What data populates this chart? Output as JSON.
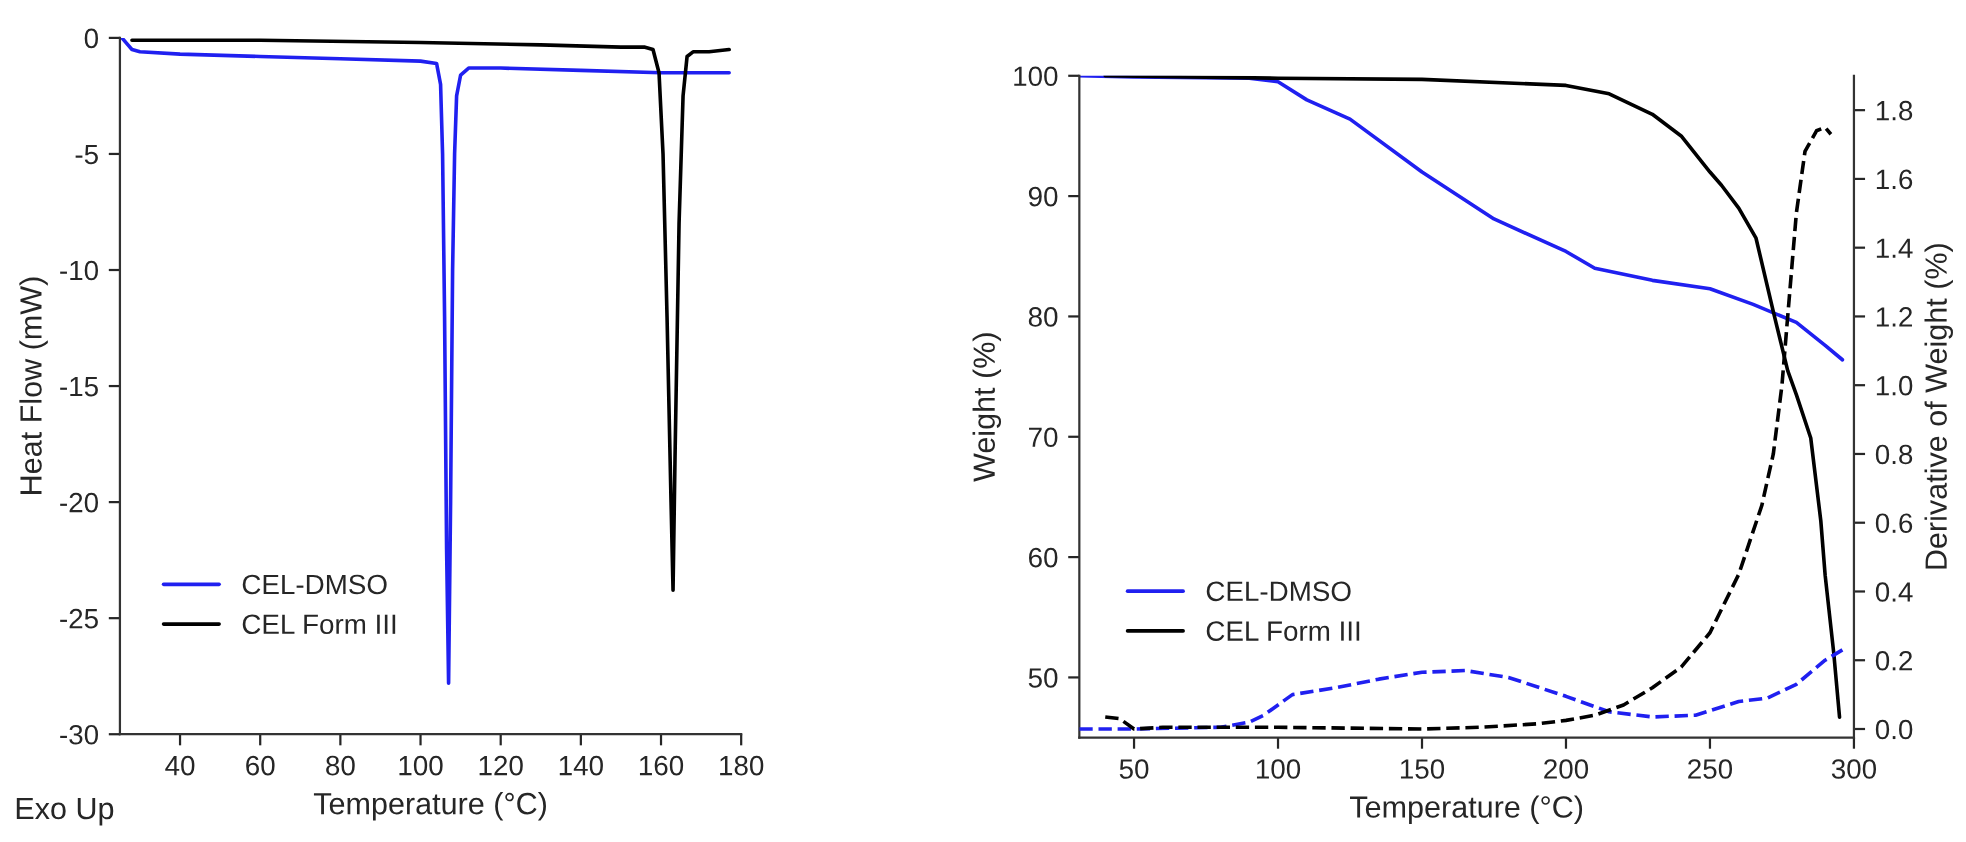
{
  "chart_data": [
    {
      "type": "line",
      "xlabel": "Temperature (°C)",
      "ylabel": "Heat Flow (mW)",
      "annotations": [
        "Exo Up"
      ],
      "xlim": [
        25,
        180
      ],
      "xticks": [
        40,
        60,
        80,
        100,
        120,
        140,
        160,
        180
      ],
      "ylim": [
        -30,
        0
      ],
      "yticks": [
        -30,
        -25,
        -20,
        -15,
        -10,
        -5,
        0
      ],
      "legend": "bottom left",
      "series": [
        {
          "name": "CEL-DMSO",
          "color": "#2020f0",
          "x": [
            25.5,
            27,
            28,
            30,
            40,
            60,
            80,
            100,
            104,
            105,
            105.5,
            106,
            106.5,
            107,
            107.5,
            108,
            108.5,
            109,
            110,
            112,
            120,
            140,
            160,
            177
          ],
          "values": [
            0,
            -0.3,
            -0.5,
            -0.6,
            -0.7,
            -0.8,
            -0.9,
            -1.0,
            -1.1,
            -2,
            -5,
            -12,
            -22,
            -27.8,
            -20,
            -10,
            -5,
            -2.5,
            -1.6,
            -1.3,
            -1.3,
            -1.4,
            -1.5,
            -1.5
          ]
        },
        {
          "name": "CEL Form III",
          "color": "#000000",
          "x": [
            28,
            60,
            100,
            130,
            150,
            156,
            158,
            159.5,
            160.5,
            161.5,
            162.5,
            163,
            163.5,
            164.5,
            165.5,
            166.5,
            168,
            172,
            177
          ],
          "values": [
            -0.1,
            -0.1,
            -0.2,
            -0.3,
            -0.4,
            -0.4,
            -0.5,
            -1.5,
            -5,
            -12,
            -20,
            -23.8,
            -18,
            -8,
            -2.5,
            -0.8,
            -0.6,
            -0.6,
            -0.5
          ]
        }
      ]
    },
    {
      "type": "line",
      "xlabel": "Temperature (°C)",
      "ylabel": "Weight (%)",
      "y2label": "Derivative of Weight (%)",
      "xlim": [
        31,
        300
      ],
      "xticks": [
        50,
        100,
        150,
        200,
        250,
        300
      ],
      "ylim": [
        45,
        100
      ],
      "yticks": [
        50,
        60,
        70,
        80,
        90,
        100
      ],
      "y2lim": [
        -0.025,
        1.9
      ],
      "y2ticks": [
        {
          "value": 0,
          "label": "0.0"
        },
        0.2,
        0.4,
        0.6,
        0.8,
        {
          "value": 1,
          "label": "1.0"
        },
        1.2,
        1.4,
        1.6,
        1.8
      ],
      "legend": "bottom left",
      "series": [
        {
          "name": "CEL-DMSO",
          "color": "#2020f0",
          "line_style": "solid",
          "x": [
            31,
            50,
            90,
            100,
            110,
            125,
            150,
            175,
            200,
            210,
            230,
            250,
            265,
            280,
            290,
            296
          ],
          "values": [
            100,
            99.9,
            99.8,
            99.5,
            98,
            96.4,
            92,
            88.1,
            85.4,
            84,
            83,
            82.3,
            81,
            79.5,
            77.6,
            76.4
          ]
        },
        {
          "name": "CEL Form III",
          "color": "#000000",
          "line_style": "solid",
          "x": [
            40,
            100,
            150,
            200,
            215,
            230,
            240,
            250,
            254,
            260,
            266,
            272,
            277,
            280,
            285,
            288.5,
            290,
            293,
            295
          ],
          "values": [
            100,
            99.8,
            99.7,
            99.2,
            98.5,
            96.8,
            95,
            92,
            90.9,
            89,
            86.5,
            80.4,
            75.5,
            73.5,
            69.9,
            63,
            58.5,
            52,
            46.7
          ]
        },
        {
          "color": "#2020f0",
          "line_style": "dashed",
          "axis": "y2",
          "x": [
            31,
            50,
            80,
            90,
            95,
            100,
            105,
            120,
            135,
            150,
            165,
            180,
            200,
            215,
            230,
            245,
            260,
            270,
            280,
            290,
            296
          ],
          "values": [
            0.0,
            0.0,
            0.005,
            0.02,
            0.04,
            0.07,
            0.1,
            0.12,
            0.145,
            0.165,
            0.17,
            0.15,
            0.095,
            0.05,
            0.035,
            0.04,
            0.08,
            0.09,
            0.13,
            0.2,
            0.23
          ]
        },
        {
          "color": "#000000",
          "line_style": "dashed",
          "axis": "y2",
          "x": [
            40,
            45,
            50,
            60,
            100,
            150,
            170,
            190,
            200,
            210,
            220,
            230,
            240,
            250,
            260,
            268,
            272,
            275,
            278,
            280,
            283,
            287,
            290,
            292
          ],
          "values": [
            0.035,
            0.03,
            0.0,
            0.005,
            0.005,
            0.0,
            0.005,
            0.015,
            0.025,
            0.04,
            0.07,
            0.12,
            0.18,
            0.28,
            0.45,
            0.65,
            0.8,
            1.0,
            1.3,
            1.5,
            1.68,
            1.74,
            1.75,
            1.73
          ]
        }
      ]
    }
  ]
}
